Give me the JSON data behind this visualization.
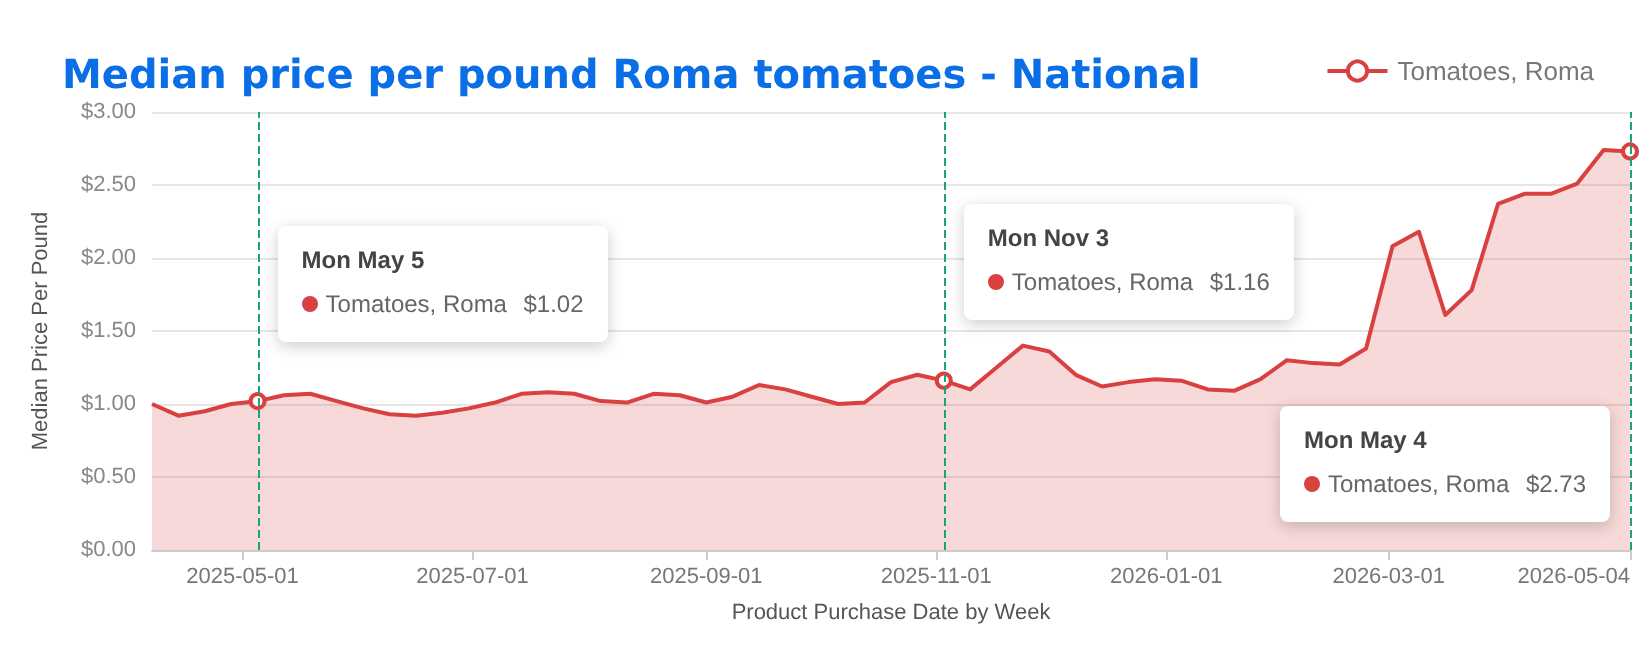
{
  "chart_data": {
    "type": "area",
    "title": "Median price per pound Roma tomatoes - National",
    "xlabel": "Product Purchase Date by Week",
    "ylabel": "Median Price Per Pound",
    "x": [
      "2025-04-07",
      "2025-04-14",
      "2025-04-21",
      "2025-04-28",
      "2025-05-05",
      "2025-05-12",
      "2025-05-19",
      "2025-05-26",
      "2025-06-02",
      "2025-06-09",
      "2025-06-16",
      "2025-06-23",
      "2025-06-30",
      "2025-07-07",
      "2025-07-14",
      "2025-07-21",
      "2025-07-28",
      "2025-08-04",
      "2025-08-11",
      "2025-08-18",
      "2025-08-25",
      "2025-09-01",
      "2025-09-08",
      "2025-09-15",
      "2025-09-22",
      "2025-09-29",
      "2025-10-06",
      "2025-10-13",
      "2025-10-20",
      "2025-10-27",
      "2025-11-03",
      "2025-11-10",
      "2025-11-17",
      "2025-11-24",
      "2025-12-01",
      "2025-12-08",
      "2025-12-15",
      "2025-12-22",
      "2025-12-29",
      "2026-01-05",
      "2026-01-12",
      "2026-01-19",
      "2026-01-26",
      "2026-02-02",
      "2026-02-09",
      "2026-02-16",
      "2026-02-23",
      "2026-03-02",
      "2026-03-09",
      "2026-03-16",
      "2026-03-23",
      "2026-03-30",
      "2026-04-06",
      "2026-04-13",
      "2026-04-20",
      "2026-04-27",
      "2026-05-04"
    ],
    "series": [
      {
        "name": "Tomatoes, Roma",
        "color": "#d94040",
        "values": [
          1.0,
          0.92,
          0.95,
          1.0,
          1.02,
          1.06,
          1.07,
          1.02,
          0.97,
          0.93,
          0.92,
          0.94,
          0.97,
          1.01,
          1.07,
          1.08,
          1.07,
          1.02,
          1.01,
          1.07,
          1.06,
          1.01,
          1.05,
          1.13,
          1.1,
          1.05,
          1.0,
          1.01,
          1.15,
          1.2,
          1.16,
          1.1,
          1.25,
          1.4,
          1.36,
          1.2,
          1.12,
          1.15,
          1.17,
          1.16,
          1.1,
          1.09,
          1.17,
          1.3,
          1.28,
          1.27,
          1.38,
          2.08,
          2.18,
          1.61,
          1.78,
          2.37,
          2.44,
          2.44,
          2.51,
          2.74,
          2.73
        ]
      }
    ],
    "xlim": [
      "2025-04-07",
      "2026-05-04"
    ],
    "xticks": [
      "2025-05-01",
      "2025-07-01",
      "2025-09-01",
      "2025-11-01",
      "2026-01-01",
      "2026-03-01",
      "2026-05-04"
    ],
    "ylim": [
      0,
      3
    ],
    "yticks": [
      {
        "value": 0,
        "label": "$0.00"
      },
      {
        "value": 0.5,
        "label": "$0.50"
      },
      {
        "value": 1,
        "label": "$1.00"
      },
      {
        "value": 1.5,
        "label": "$1.50"
      },
      {
        "value": 2,
        "label": "$2.00"
      },
      {
        "value": 2.5,
        "label": "$2.50"
      },
      {
        "value": 3,
        "label": "$3.00"
      }
    ],
    "grid": "y",
    "legend": "top right",
    "marker": "none",
    "line_style": "solid",
    "ref_lines": [
      {
        "axis": "x",
        "value": "2025-05-05",
        "color": "#1aa37a",
        "line_style": "dashed"
      },
      {
        "axis": "x",
        "value": "2025-11-03",
        "color": "#1aa37a",
        "line_style": "dashed"
      },
      {
        "axis": "x",
        "value": "2026-05-04",
        "color": "#1aa37a",
        "line_style": "dashed"
      }
    ],
    "annotations": [
      "Mon May 5\nTomatoes, Roma\t$1.02",
      "Mon Nov 3\nTomatoes, Roma\t$1.16",
      "Mon May 4\nTomatoes, Roma\t$2.73"
    ]
  }
}
